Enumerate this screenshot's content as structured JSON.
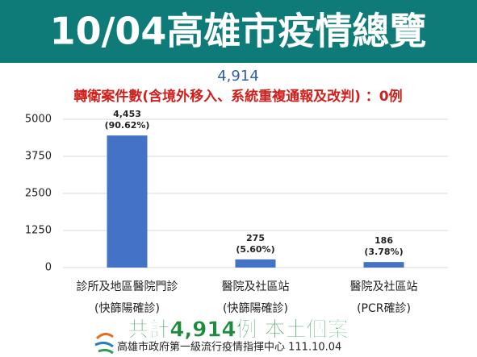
{
  "header": {
    "title": "10/04高雄市疫情總覽"
  },
  "chart_data": {
    "type": "bar",
    "total": "4,914",
    "subtitle": "轉衛案件數(含境外移入、系統重複通報及改判) ：0例",
    "categories": [
      [
        "診所及地區醫院門診",
        "(快篩陽確診)"
      ],
      [
        "醫院及社區站",
        "(快篩陽確診)"
      ],
      [
        "醫院及社區站",
        "(PCR確診)"
      ]
    ],
    "values": [
      4453,
      275,
      186
    ],
    "value_labels": [
      "4,453",
      "275",
      "186"
    ],
    "percent_labels": [
      "(90.62%)",
      "(5.60%)",
      "(3.78%)"
    ],
    "color": "#4472c4",
    "ylim": [
      0,
      5000
    ],
    "yticks": [
      0,
      1250,
      2500,
      3750,
      5000
    ],
    "grid": true
  },
  "footer": {
    "summary": "共計4,914例 本土個案",
    "source": "高雄市政府第一級流行疫情指揮中心 111.10.04"
  }
}
